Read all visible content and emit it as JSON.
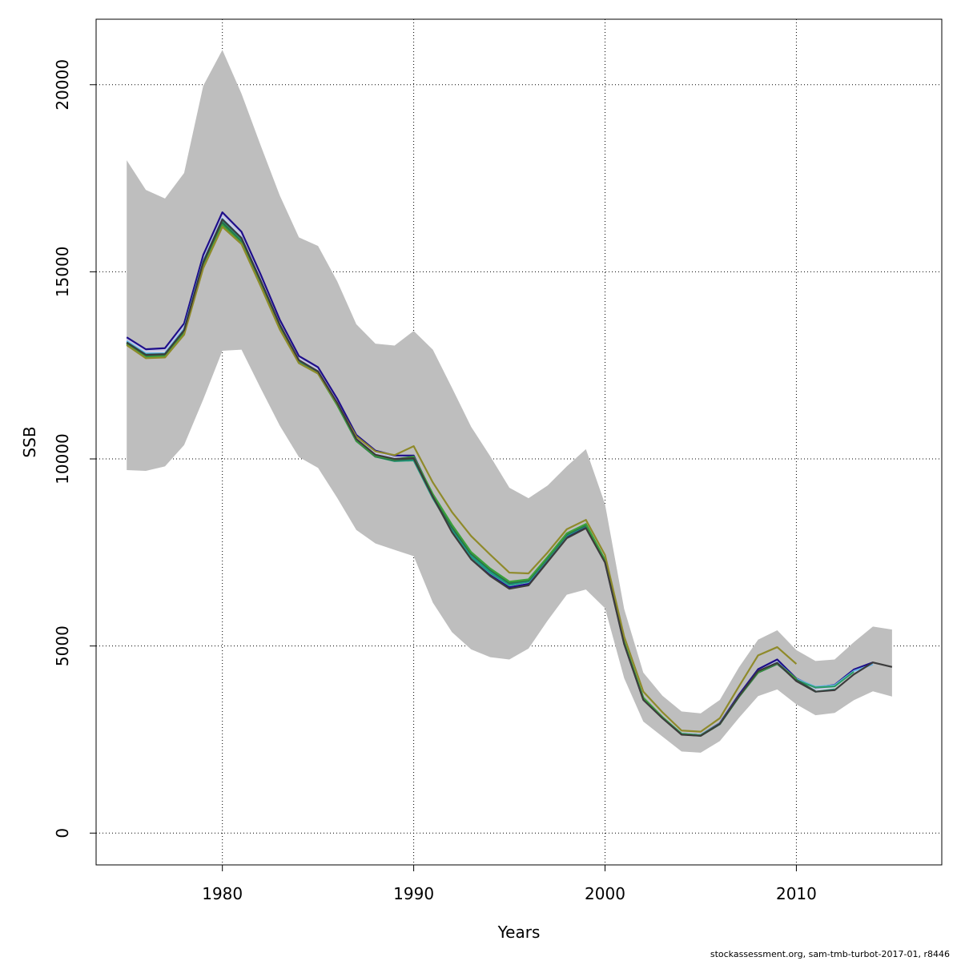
{
  "chart_data": {
    "type": "line",
    "xlabel": "Years",
    "ylabel": "SSB",
    "xlim": [
      1973.4,
      2017.6
    ],
    "ylim": [
      -850,
      21750
    ],
    "x_ticks": [
      1980,
      1990,
      2000,
      2010
    ],
    "y_ticks": [
      0,
      5000,
      10000,
      15000,
      20000
    ],
    "grid": true,
    "band": {
      "x": [
        1975,
        1976,
        1977,
        1978,
        1979,
        1980,
        1981,
        1982,
        1983,
        1984,
        1985,
        1986,
        1987,
        1988,
        1989,
        1990,
        1991,
        1992,
        1993,
        1994,
        1995,
        1996,
        1997,
        1998,
        1999,
        2000,
        2001,
        2002,
        2003,
        2004,
        2005,
        2006,
        2007,
        2008,
        2009,
        2010,
        2011,
        2012,
        2013,
        2014,
        2015
      ],
      "upper": [
        17980,
        17190,
        16960,
        17640,
        19970,
        20930,
        19760,
        18380,
        17040,
        15920,
        15690,
        14750,
        13600,
        13080,
        13030,
        13420,
        12920,
        11900,
        10860,
        10070,
        9230,
        8950,
        9290,
        9800,
        10260,
        8790,
        5990,
        4290,
        3670,
        3250,
        3200,
        3560,
        4430,
        5170,
        5420,
        4890,
        4600,
        4640,
        5100,
        5520,
        5440
      ],
      "lower": [
        9700,
        9680,
        9800,
        10370,
        11590,
        12890,
        12920,
        11890,
        10890,
        10050,
        9760,
        8960,
        8100,
        7740,
        7570,
        7400,
        6160,
        5370,
        4910,
        4700,
        4640,
        4930,
        5680,
        6370,
        6510,
        6010,
        4140,
        2980,
        2580,
        2180,
        2150,
        2460,
        3080,
        3660,
        3840,
        3440,
        3150,
        3210,
        3550,
        3790,
        3650
      ],
      "color": "#bebebe"
    },
    "series": [
      {
        "color": "#e0dede",
        "x": [
          1975,
          1976,
          1977,
          1978,
          1979,
          1980,
          1981,
          1982,
          1983,
          1984,
          1985,
          1986,
          1987,
          1988,
          1989,
          1990,
          1991,
          1992,
          1993,
          1994,
          1995,
          1996,
          1997,
          1998,
          1999,
          2000,
          2001,
          2002,
          2003,
          2004,
          2005,
          2006,
          2007,
          2008,
          2009,
          2010,
          2011,
          2012,
          2013,
          2014
        ],
        "y": [
          13180,
          12850,
          12870,
          13520,
          15350,
          16480,
          15960,
          14820,
          13620,
          12670,
          12370,
          11520,
          10550,
          10130,
          10020,
          10020,
          8990,
          8130,
          7370,
          6920,
          6590,
          6680,
          7300,
          7920,
          8190,
          7250,
          5060,
          3570,
          3080,
          2650,
          2620,
          2930,
          3670,
          4330,
          4570,
          4080,
          3820,
          3900,
          4310,
          4530
        ]
      },
      {
        "color": "#c3c3e3",
        "x": [
          1975,
          1976,
          1977,
          1978,
          1979,
          1980,
          1981,
          1982,
          1983,
          1984,
          1985,
          1986,
          1987,
          1988,
          1989,
          1990,
          1991,
          1992,
          1993,
          1994,
          1995,
          1996,
          1997,
          1998,
          1999,
          2000,
          2001,
          2002,
          2003,
          2004,
          2005,
          2006,
          2007,
          2008,
          2009,
          2010,
          2011,
          2012,
          2013,
          2014
        ],
        "y": [
          13210,
          12890,
          12910,
          13560,
          15390,
          16520,
          16000,
          14870,
          13660,
          12700,
          12400,
          11550,
          10580,
          10160,
          10050,
          10050,
          9000,
          8140,
          7390,
          6930,
          6600,
          6690,
          7310,
          7930,
          8200,
          7260,
          5070,
          3580,
          3090,
          2660,
          2630,
          2940,
          3680,
          4340,
          4580,
          4090,
          3840,
          3920,
          4330,
          4550
        ]
      },
      {
        "color": "#1e0e8a",
        "x": [
          1975,
          1976,
          1977,
          1978,
          1979,
          1980,
          1981,
          1982,
          1983,
          1984,
          1985,
          1986,
          1987,
          1988,
          1989,
          1990,
          1991,
          1992,
          1993,
          1994,
          1995,
          1996,
          1997,
          1998,
          1999,
          2000,
          2001,
          2002,
          2003,
          2004,
          2005,
          2006,
          2007,
          2008,
          2009,
          2010,
          2011,
          2012,
          2013,
          2014
        ],
        "y": [
          13250,
          12930,
          12960,
          13620,
          15450,
          16590,
          16070,
          14930,
          13720,
          12750,
          12450,
          11610,
          10640,
          10220,
          10090,
          10090,
          9030,
          8150,
          7380,
          6910,
          6570,
          6660,
          7280,
          7900,
          8170,
          7240,
          5060,
          3570,
          3080,
          2650,
          2620,
          2940,
          3700,
          4380,
          4640,
          4130,
          3890,
          3960,
          4370,
          4560
        ]
      },
      {
        "color": "#6bb3e6",
        "x": [
          1975,
          1976,
          1977,
          1978,
          1979,
          1980,
          1981,
          1982,
          1983,
          1984,
          1985,
          1986,
          1987,
          1988,
          1989,
          1990,
          1991,
          1992,
          1993,
          1994,
          1995,
          1996,
          1997,
          1998,
          1999,
          2000,
          2001,
          2002,
          2003,
          2004,
          2005,
          2006,
          2007,
          2008,
          2009,
          2010,
          2011,
          2012,
          2013,
          2014
        ],
        "y": [
          13150,
          12820,
          12830,
          13480,
          15290,
          16420,
          15910,
          14760,
          13570,
          12620,
          12330,
          11470,
          10500,
          10080,
          9960,
          9980,
          8960,
          8110,
          7380,
          6950,
          6620,
          6710,
          7330,
          7950,
          8220,
          7280,
          5080,
          3600,
          3100,
          2660,
          2620,
          2930,
          3660,
          4310,
          4560,
          4120,
          3910,
          3950,
          4330,
          4510
        ]
      },
      {
        "color": "#2d9c6a",
        "x": [
          1975,
          1976,
          1977,
          1978,
          1979,
          1980,
          1981,
          1982,
          1983,
          1984,
          1985,
          1986,
          1987,
          1988,
          1989,
          1990,
          1991,
          1992,
          1993,
          1994,
          1995,
          1996,
          1997,
          1998,
          1999,
          2000,
          2001,
          2002,
          2003,
          2004,
          2005,
          2006,
          2007,
          2008,
          2009,
          2010,
          2011,
          2012,
          2013
        ],
        "y": [
          13100,
          12760,
          12780,
          13420,
          15220,
          16360,
          15850,
          14700,
          13530,
          12590,
          12300,
          11450,
          10480,
          10060,
          9940,
          9960,
          8950,
          8100,
          7380,
          6960,
          6630,
          6720,
          7330,
          7950,
          8210,
          7270,
          5070,
          3590,
          3090,
          2650,
          2610,
          2920,
          3650,
          4300,
          4530,
          4090,
          3890,
          3920,
          4310
        ]
      },
      {
        "color": "#1a9a8a",
        "x": [
          1975,
          1976,
          1977,
          1978,
          1979,
          1980,
          1981,
          1982,
          1983,
          1984,
          1985,
          1986,
          1987,
          1988,
          1989,
          1990,
          1991,
          1992,
          1993,
          1994,
          1995,
          1996,
          1997,
          1998,
          1999,
          2000,
          2001,
          2002,
          2003,
          2004,
          2005,
          2006,
          2007,
          2008,
          2009,
          2010,
          2011,
          2012
        ],
        "y": [
          13120,
          12790,
          12800,
          13440,
          15250,
          16390,
          15880,
          14730,
          13550,
          12600,
          12310,
          11460,
          10490,
          10070,
          9950,
          9970,
          8960,
          8120,
          7400,
          6980,
          6650,
          6730,
          7340,
          7960,
          8220,
          7280,
          5080,
          3600,
          3090,
          2650,
          2610,
          2920,
          3650,
          4300,
          4530,
          4080,
          3780,
          3840
        ]
      },
      {
        "color": "#29704a",
        "x": [
          1975,
          1976,
          1977,
          1978,
          1979,
          1980,
          1981,
          1982,
          1983,
          1984,
          1985,
          1986,
          1987,
          1988,
          1989,
          1990,
          1991,
          1992,
          1993,
          1994,
          1995,
          1996,
          1997,
          1998,
          1999,
          2000,
          2001,
          2002,
          2003,
          2004,
          2005,
          2006,
          2007,
          2008,
          2009,
          2010,
          2011
        ],
        "y": [
          13080,
          12740,
          12760,
          13380,
          15180,
          16310,
          15800,
          14660,
          13500,
          12570,
          12290,
          11440,
          10480,
          10060,
          9960,
          10000,
          8990,
          8170,
          7460,
          7030,
          6680,
          6750,
          7360,
          7980,
          8230,
          7290,
          5090,
          3610,
          3090,
          2640,
          2600,
          2910,
          3640,
          4290,
          4520,
          4100,
          3790
        ]
      },
      {
        "color": "#3aa03a",
        "x": [
          1975,
          1976,
          1977,
          1978,
          1979,
          1980,
          1981,
          1982,
          1983,
          1984,
          1985,
          1986,
          1987,
          1988,
          1989,
          1990,
          1991,
          1992,
          1993,
          1994,
          1995,
          1996,
          1997,
          1998,
          1999,
          2000,
          2001,
          2002,
          2003,
          2004,
          2005,
          2006,
          2007,
          2008,
          2009,
          2010
        ],
        "y": [
          13060,
          12720,
          12740,
          13350,
          15130,
          16250,
          15770,
          14640,
          13480,
          12560,
          12280,
          11440,
          10490,
          10080,
          9990,
          10060,
          9060,
          8240,
          7510,
          7070,
          6720,
          6780,
          7380,
          8010,
          8260,
          7300,
          5100,
          3620,
          3100,
          2650,
          2610,
          2920,
          3650,
          4300,
          4540,
          4120
        ]
      },
      {
        "color": "#8f8a2a",
        "x": [
          1975,
          1976,
          1977,
          1978,
          1979,
          1980,
          1981,
          1982,
          1983,
          1984,
          1985,
          1986,
          1987,
          1988,
          1989,
          1990,
          1991,
          1992,
          1993,
          1994,
          1995,
          1996,
          1997,
          1998,
          1999,
          2000,
          2001,
          2002,
          2003,
          2004,
          2005,
          2006,
          2007,
          2008,
          2009,
          2010
        ],
        "y": [
          13040,
          12690,
          12710,
          13320,
          15100,
          16200,
          15740,
          14620,
          13460,
          12560,
          12280,
          11480,
          10600,
          10200,
          10100,
          10340,
          9370,
          8580,
          7940,
          7440,
          6960,
          6940,
          7500,
          8120,
          8370,
          7430,
          5250,
          3780,
          3230,
          2740,
          2710,
          3070,
          3920,
          4750,
          4970,
          4520
        ]
      },
      {
        "color": "#3c3c3c",
        "x": [
          1975,
          1976,
          1977,
          1978,
          1979,
          1980,
          1981,
          1982,
          1983,
          1984,
          1985,
          1986,
          1987,
          1988,
          1989,
          1990,
          1991,
          1992,
          1993,
          1994,
          1995,
          1996,
          1997,
          1998,
          1999,
          2000,
          2001,
          2002,
          2003,
          2004,
          2005,
          2006,
          2007,
          2008,
          2009,
          2010,
          2011,
          2012,
          2013,
          2014,
          2015
        ],
        "y": [
          13110,
          12780,
          12800,
          13440,
          15260,
          16400,
          15900,
          14770,
          13590,
          12640,
          12340,
          11500,
          10530,
          10110,
          10000,
          10020,
          8990,
          8040,
          7320,
          6870,
          6530,
          6620,
          7250,
          7880,
          8150,
          7230,
          5050,
          3560,
          3070,
          2630,
          2600,
          2920,
          3660,
          4330,
          4550,
          4060,
          3780,
          3820,
          4240,
          4560,
          4440
        ]
      }
    ]
  },
  "footer_text": "stockassessment.org, sam-tmb-turbot-2017-01, r8446"
}
